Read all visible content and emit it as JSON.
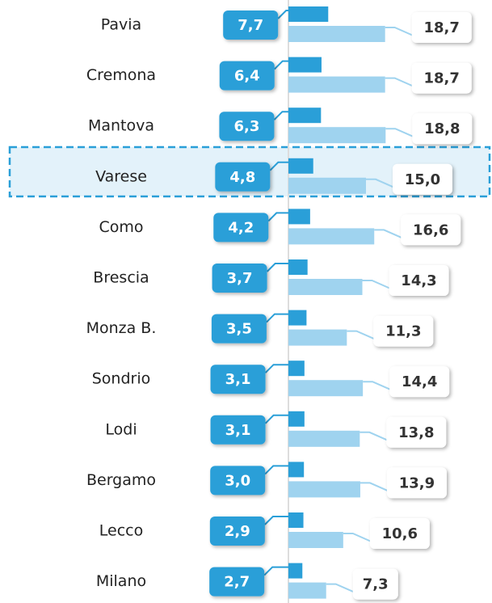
{
  "chart_data": {
    "type": "bar",
    "categories": [
      "Pavia",
      "Cremona",
      "Mantova",
      "Varese",
      "Como",
      "Brescia",
      "Monza B.",
      "Sondrio",
      "Lodi",
      "Bergamo",
      "Lecco",
      "Milano"
    ],
    "series": [
      {
        "color": "#2a9fd8",
        "values": [
          7.7,
          6.4,
          6.3,
          4.8,
          4.2,
          3.7,
          3.5,
          3.1,
          3.1,
          3.0,
          2.9,
          2.7
        ],
        "value_labels": [
          "7,7",
          "6,4",
          "6,3",
          "4,8",
          "4,2",
          "3,7",
          "3,5",
          "3,1",
          "3,1",
          "3,0",
          "2,9",
          "2,7"
        ]
      },
      {
        "color": "#9fd3ef",
        "values": [
          18.7,
          18.7,
          18.8,
          15.0,
          16.6,
          14.3,
          11.3,
          14.4,
          13.8,
          13.9,
          10.6,
          7.3
        ],
        "value_labels": [
          "18,7",
          "18,7",
          "18,8",
          "15,0",
          "16,6",
          "14,3",
          "11,3",
          "14,4",
          "13,8",
          "13,9",
          "10,6",
          "7,3"
        ]
      }
    ]
  }
}
